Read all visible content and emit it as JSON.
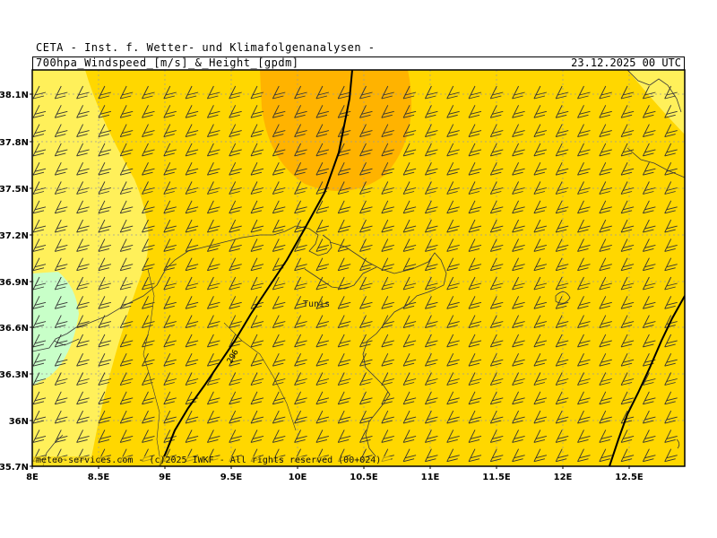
{
  "header": {
    "institute": "CETA - Inst. f. Wetter- und Klimafolgenanalysen -",
    "product": "700hpa_Windspeed_[m/s]_&_Height_[gpdm]",
    "valid_time": "23.12.2025 00 UTC"
  },
  "map": {
    "lat_labels": [
      "38.1N",
      "37.8N",
      "37.5N",
      "37.2N",
      "36.9N",
      "36.6N",
      "36.3N",
      "36N",
      "35.7N"
    ],
    "lon_labels": [
      "8E",
      "8.5E",
      "9E",
      "9.5E",
      "10E",
      "10.5E",
      "11E",
      "11.5E",
      "12E",
      "12.5E"
    ],
    "city_label": "Tunis",
    "contour_label": "296",
    "colors": {
      "background_yellow": "#ffd700",
      "light_yellow": "#fff05a",
      "orange": "#ffb300",
      "light_green": "#c8ffc8",
      "grid": "#9a9a9a",
      "coast": "#3a3a3a",
      "contour": "#000000",
      "barb": "#333333"
    },
    "wind_barb_glyph": "two full barbs (about 20 kt) from the southwest"
  },
  "footer": {
    "credit": "meteo-services.com - (c)2025 IWKF - All rights reserved (00+024)"
  }
}
